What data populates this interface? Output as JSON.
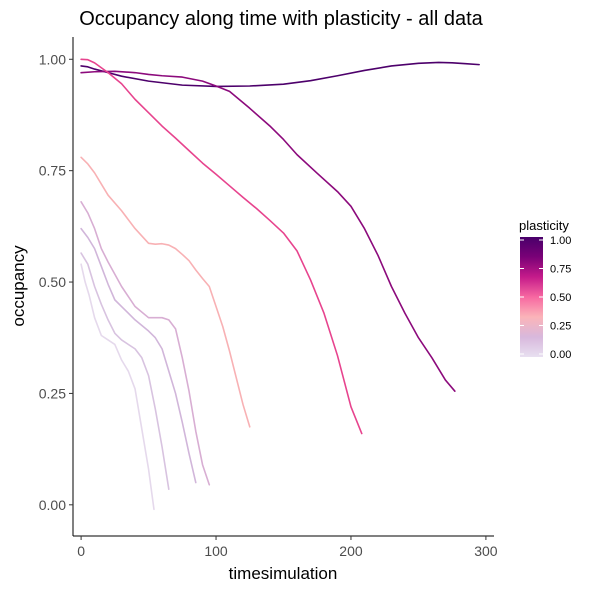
{
  "chart_data": {
    "type": "line",
    "title": "Occupancy along time with plasticity - all data",
    "xlabel": "timesimulation",
    "ylabel": "occupancy",
    "xlim": [
      -6,
      306
    ],
    "ylim": [
      -0.07,
      1.05
    ],
    "x_ticks": [
      0,
      100,
      200,
      300
    ],
    "x_tick_labels": [
      "0",
      "100",
      "200",
      "300"
    ],
    "y_ticks": [
      0.0,
      0.25,
      0.5,
      0.75,
      1.0
    ],
    "y_tick_labels": [
      "0.00",
      "0.25",
      "0.50",
      "0.75",
      "1.00"
    ],
    "grid": false,
    "legend": {
      "title": "plasticity",
      "position": "right",
      "type": "colorbar",
      "range": [
        0,
        1
      ],
      "ticks": [
        0.0,
        0.25,
        0.5,
        0.75,
        1.0
      ],
      "tick_labels": [
        "0.00",
        "0.25",
        "0.50",
        "0.75",
        "1.00"
      ],
      "colors": [
        "#e8e0f0",
        "#d8b8dc",
        "#fbb4b9",
        "#f768a1",
        "#c51b8a",
        "#7a0177",
        "#49006a"
      ]
    },
    "series": [
      {
        "plasticity": 1.0,
        "color": "#4d006b",
        "x": [
          0,
          5,
          10,
          20,
          30,
          50,
          75,
          100,
          125,
          150,
          170,
          190,
          210,
          230,
          250,
          265,
          275,
          285,
          295
        ],
        "y": [
          0.985,
          0.983,
          0.978,
          0.97,
          0.962,
          0.951,
          0.942,
          0.939,
          0.94,
          0.944,
          0.952,
          0.963,
          0.975,
          0.985,
          0.991,
          0.993,
          0.992,
          0.99,
          0.988
        ]
      },
      {
        "plasticity": 0.86,
        "color": "#8c0a7c",
        "x": [
          0,
          10,
          25,
          40,
          50,
          60,
          75,
          90,
          100,
          110,
          125,
          140,
          150,
          160,
          175,
          190,
          200,
          210,
          220,
          230,
          240,
          250,
          260,
          270,
          277
        ],
        "y": [
          0.97,
          0.972,
          0.973,
          0.97,
          0.966,
          0.963,
          0.96,
          0.951,
          0.94,
          0.928,
          0.89,
          0.85,
          0.82,
          0.786,
          0.744,
          0.703,
          0.67,
          0.62,
          0.56,
          0.49,
          0.43,
          0.375,
          0.33,
          0.28,
          0.255
        ]
      },
      {
        "plasticity": 0.6,
        "color": "#e7448e",
        "x": [
          0,
          5,
          10,
          20,
          30,
          40,
          50,
          60,
          70,
          80,
          90,
          100,
          110,
          120,
          130,
          140,
          150,
          160,
          170,
          180,
          190,
          200,
          208
        ],
        "y": [
          1.0,
          0.999,
          0.992,
          0.97,
          0.945,
          0.91,
          0.88,
          0.85,
          0.823,
          0.795,
          0.767,
          0.742,
          0.716,
          0.69,
          0.665,
          0.638,
          0.61,
          0.57,
          0.505,
          0.43,
          0.335,
          0.22,
          0.16
        ]
      },
      {
        "plasticity": 0.3,
        "color": "#f8b1b4",
        "x": [
          0,
          5,
          10,
          15,
          20,
          30,
          40,
          50,
          55,
          60,
          65,
          70,
          75,
          80,
          85,
          90,
          95,
          100,
          105,
          110,
          115,
          120,
          125
        ],
        "y": [
          0.78,
          0.765,
          0.745,
          0.72,
          0.695,
          0.66,
          0.62,
          0.587,
          0.585,
          0.586,
          0.583,
          0.575,
          0.562,
          0.548,
          0.527,
          0.508,
          0.49,
          0.445,
          0.4,
          0.345,
          0.285,
          0.225,
          0.175
        ]
      },
      {
        "plasticity": 0.2,
        "color": "#d8aed3",
        "x": [
          0,
          5,
          10,
          15,
          20,
          30,
          40,
          50,
          55,
          60,
          65,
          70,
          75,
          80,
          85,
          90,
          95
        ],
        "y": [
          0.68,
          0.655,
          0.62,
          0.575,
          0.545,
          0.49,
          0.445,
          0.42,
          0.42,
          0.42,
          0.415,
          0.395,
          0.33,
          0.255,
          0.165,
          0.09,
          0.045
        ]
      },
      {
        "plasticity": 0.15,
        "color": "#d1b6da",
        "x": [
          0,
          5,
          10,
          15,
          20,
          25,
          30,
          40,
          50,
          55,
          60,
          65,
          70,
          75,
          80,
          85
        ],
        "y": [
          0.62,
          0.6,
          0.575,
          0.535,
          0.495,
          0.46,
          0.445,
          0.415,
          0.39,
          0.375,
          0.35,
          0.3,
          0.25,
          0.185,
          0.115,
          0.05
        ]
      },
      {
        "plasticity": 0.1,
        "color": "#d8c3e0",
        "x": [
          0,
          5,
          10,
          15,
          20,
          25,
          30,
          40,
          45,
          50,
          55,
          60,
          65
        ],
        "y": [
          0.565,
          0.54,
          0.49,
          0.45,
          0.415,
          0.385,
          0.37,
          0.35,
          0.33,
          0.29,
          0.215,
          0.13,
          0.035
        ]
      },
      {
        "plasticity": 0.02,
        "color": "#e5d9ec",
        "x": [
          0,
          3,
          6,
          10,
          15,
          20,
          25,
          30,
          35,
          40,
          45,
          50,
          54
        ],
        "y": [
          0.54,
          0.5,
          0.47,
          0.42,
          0.38,
          0.37,
          0.36,
          0.325,
          0.3,
          0.26,
          0.17,
          0.08,
          -0.01
        ]
      }
    ]
  }
}
